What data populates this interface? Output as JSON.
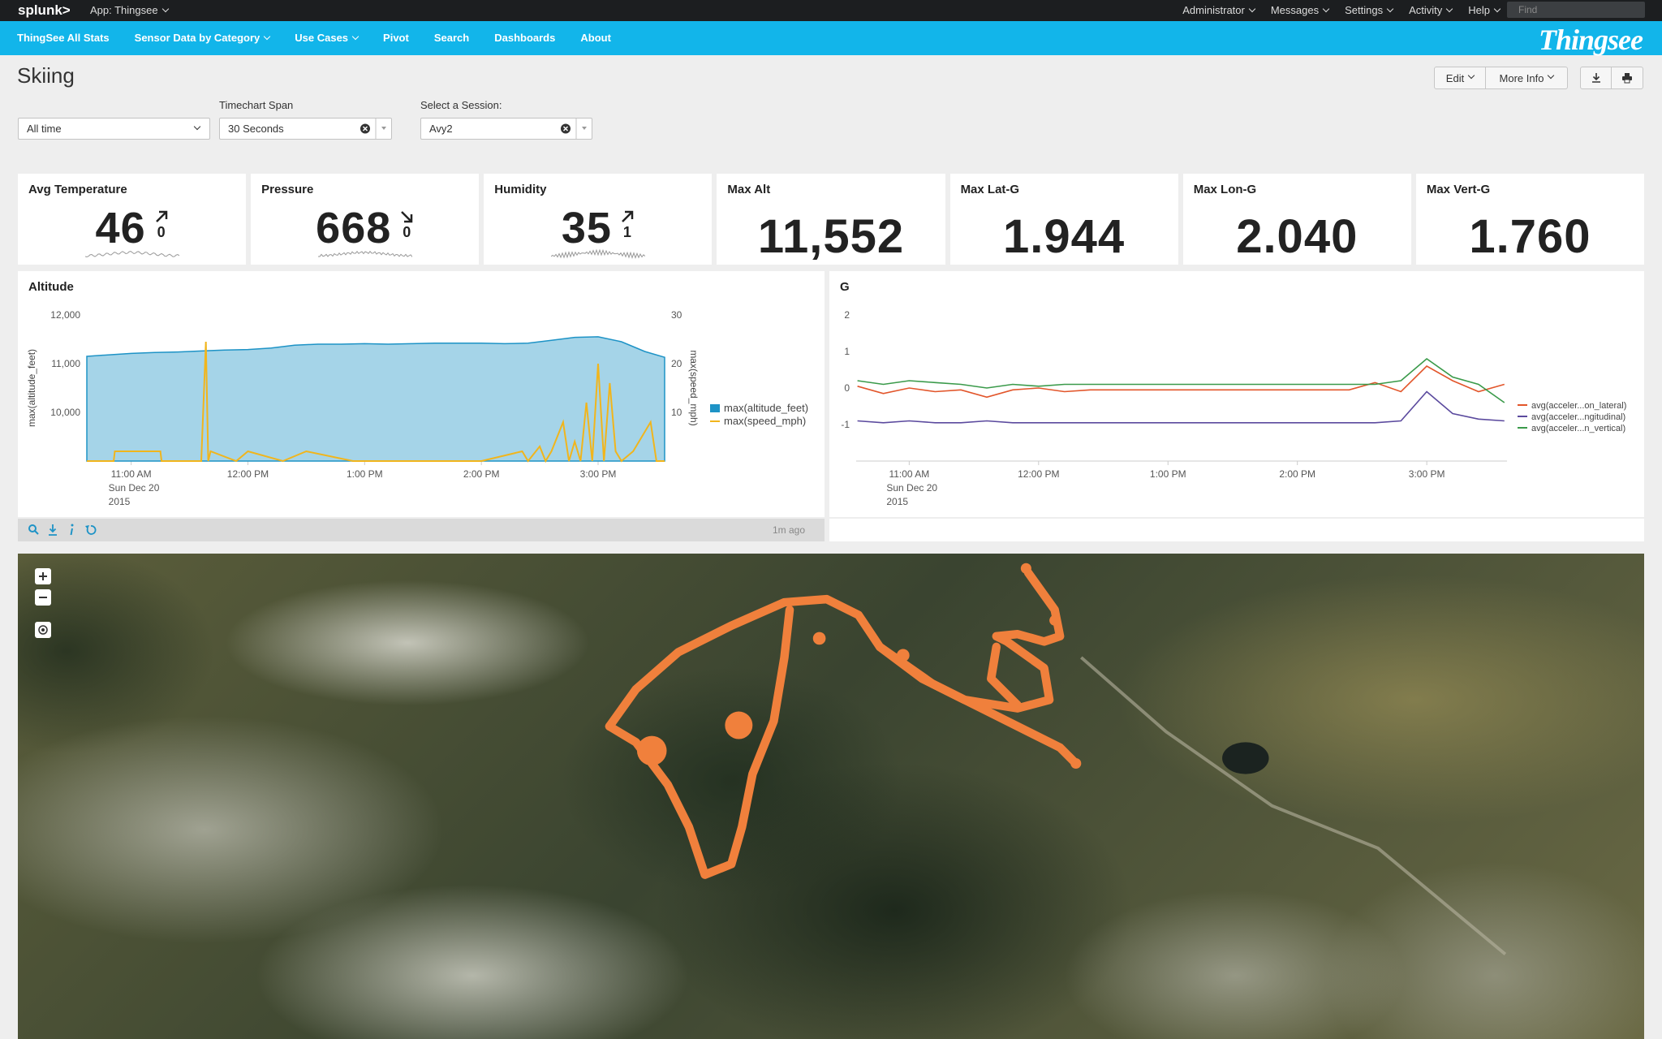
{
  "header": {
    "logo": "splunk>",
    "app": "App: Thingsee",
    "menu": [
      "Administrator",
      "Messages",
      "Settings",
      "Activity",
      "Help"
    ],
    "search": "Find"
  },
  "navigation": {
    "items": [
      {
        "label": "ThingSee All Stats"
      },
      {
        "label": "Sensor Data by Category",
        "dropdown": true
      },
      {
        "label": "Use Cases",
        "dropdown": true
      },
      {
        "label": "Pivot"
      },
      {
        "label": "Search"
      },
      {
        "label": "Dashboards"
      },
      {
        "label": "About"
      }
    ],
    "brand": "Thingsee"
  },
  "page": {
    "title": "Skiing",
    "buttons": [
      "Edit",
      "More Info"
    ]
  },
  "inputs": [
    {
      "value": "All time"
    },
    {
      "label": "Timechart Span",
      "value": "30 Seconds"
    },
    {
      "label": "Select a Session:",
      "value": "Avy2"
    }
  ],
  "single_values": [
    {
      "title": "Avg Temperature",
      "value": 46,
      "delta": 0,
      "trend": "up"
    },
    {
      "title": "Pressure",
      "value": 668,
      "delta": 0,
      "trend": "down"
    },
    {
      "title": "Humidity",
      "value": 35,
      "delta": 1,
      "trend": "up"
    },
    {
      "title": "Max Alt",
      "value": 11552,
      "value_label": "11,552"
    },
    {
      "title": "Max Lat-G",
      "value": 1.944
    },
    {
      "title": "Max Lon-G",
      "value": 2.04,
      "value_label": "2.040"
    },
    {
      "title": "Max Vert-G",
      "value": 1.76,
      "value_label": "1.760"
    }
  ],
  "chart_data": [
    {
      "type": "area",
      "title": "Altitude",
      "ylabel": "max(altitude_feet)",
      "y2label": "max(speed_mph)",
      "xlim": [
        10.62,
        15.57
      ],
      "xticks": [
        {
          "value": 11,
          "label": "11:00 AM"
        },
        {
          "value": 12,
          "label": "12:00 PM"
        },
        {
          "value": 13,
          "label": "1:00 PM"
        },
        {
          "value": 14,
          "label": "2:00 PM"
        },
        {
          "value": 15,
          "label": "3:00 PM"
        }
      ],
      "xtick_sublabels": [
        "Sun Dec 20",
        "2015"
      ],
      "ylim": [
        9000,
        12000
      ],
      "yticks": [
        {
          "value": 10000,
          "label": "10,000"
        },
        {
          "value": 11000,
          "label": "11,000"
        },
        {
          "value": 12000,
          "label": "12,000"
        }
      ],
      "y2lim": [
        0,
        30
      ],
      "y2ticks": [
        10,
        20,
        30
      ],
      "grid": false,
      "legend": "right",
      "series": [
        {
          "name": "max(altitude_feet)",
          "type": "area",
          "color": "#1e93c6",
          "x": [
            10.62,
            10.8,
            11.0,
            11.2,
            11.4,
            11.6,
            11.8,
            12.0,
            12.2,
            12.4,
            12.6,
            12.8,
            13.0,
            13.2,
            13.4,
            13.6,
            13.8,
            14.0,
            14.2,
            14.4,
            14.6,
            14.8,
            15.0,
            15.2,
            15.4,
            15.57
          ],
          "values": [
            11150,
            11180,
            11210,
            11230,
            11240,
            11260,
            11280,
            11290,
            11320,
            11380,
            11400,
            11400,
            11410,
            11400,
            11410,
            11420,
            11420,
            11420,
            11410,
            11420,
            11480,
            11540,
            11552,
            11450,
            11250,
            11130
          ]
        },
        {
          "name": "max(speed_mph)",
          "type": "line",
          "color": "#f1b51c",
          "axis": "y2",
          "x": [
            10.62,
            10.85,
            10.86,
            11.25,
            11.26,
            11.6,
            11.64,
            11.66,
            11.68,
            11.9,
            12.0,
            12.3,
            12.5,
            12.9,
            13.5,
            14.0,
            14.35,
            14.4,
            14.5,
            14.55,
            14.6,
            14.7,
            14.75,
            14.8,
            14.85,
            14.9,
            14.95,
            15.0,
            15.05,
            15.1,
            15.15,
            15.2,
            15.3,
            15.45,
            15.5,
            15.57
          ],
          "values": [
            0,
            0,
            2,
            2,
            0,
            0,
            24.5,
            0,
            2,
            0,
            2,
            0,
            2,
            0,
            0,
            0,
            2,
            0,
            3,
            0,
            2,
            8,
            0,
            4,
            0,
            12,
            0,
            20,
            0,
            16,
            2,
            0,
            2,
            8,
            0,
            0
          ]
        }
      ]
    },
    {
      "type": "line",
      "title": "G",
      "xlim": [
        10.59,
        15.62
      ],
      "xticks": [
        {
          "value": 11,
          "label": "11:00 AM"
        },
        {
          "value": 12,
          "label": "12:00 PM"
        },
        {
          "value": 13,
          "label": "1:00 PM"
        },
        {
          "value": 14,
          "label": "2:00 PM"
        },
        {
          "value": 15,
          "label": "3:00 PM"
        }
      ],
      "xtick_sublabels": [
        "Sun Dec 20",
        "2015"
      ],
      "ylim": [
        -2,
        2
      ],
      "yticks": [
        -1,
        0,
        1,
        2
      ],
      "grid": false,
      "legend": "right",
      "series": [
        {
          "name": "avg(acceler...on_lateral)",
          "color": "#e2552a",
          "x": [
            10.6,
            10.8,
            11.0,
            11.2,
            11.4,
            11.6,
            11.8,
            12.0,
            12.2,
            12.4,
            12.6,
            12.8,
            13.0,
            13.2,
            13.4,
            13.6,
            13.8,
            14.0,
            14.2,
            14.4,
            14.6,
            14.8,
            15.0,
            15.2,
            15.4,
            15.6
          ],
          "values": [
            0.05,
            -0.15,
            0.0,
            -0.1,
            -0.05,
            -0.25,
            -0.05,
            0.0,
            -0.1,
            -0.05,
            -0.05,
            -0.05,
            -0.05,
            -0.05,
            -0.05,
            -0.05,
            -0.05,
            -0.05,
            -0.05,
            -0.05,
            0.15,
            -0.1,
            0.6,
            0.2,
            -0.1,
            0.1
          ]
        },
        {
          "name": "avg(acceler...ngitudinal)",
          "color": "#5b4a9e",
          "x": [
            10.6,
            10.8,
            11.0,
            11.2,
            11.4,
            11.6,
            11.8,
            12.0,
            12.2,
            12.4,
            12.6,
            12.8,
            13.0,
            13.2,
            13.4,
            13.6,
            13.8,
            14.0,
            14.2,
            14.4,
            14.6,
            14.8,
            15.0,
            15.2,
            15.4,
            15.6
          ],
          "values": [
            -0.9,
            -0.95,
            -0.9,
            -0.95,
            -0.95,
            -0.9,
            -0.95,
            -0.95,
            -0.95,
            -0.95,
            -0.95,
            -0.95,
            -0.95,
            -0.95,
            -0.95,
            -0.95,
            -0.95,
            -0.95,
            -0.95,
            -0.95,
            -0.95,
            -0.9,
            -0.1,
            -0.7,
            -0.85,
            -0.9
          ]
        },
        {
          "name": "avg(acceler...n_vertical)",
          "color": "#3a9a4a",
          "x": [
            10.6,
            10.8,
            11.0,
            11.2,
            11.4,
            11.6,
            11.8,
            12.0,
            12.2,
            12.4,
            12.6,
            12.8,
            13.0,
            13.2,
            13.4,
            13.6,
            13.8,
            14.0,
            14.2,
            14.4,
            14.6,
            14.8,
            15.0,
            15.2,
            15.4,
            15.6
          ],
          "values": [
            0.2,
            0.1,
            0.2,
            0.15,
            0.1,
            0.0,
            0.1,
            0.05,
            0.1,
            0.1,
            0.1,
            0.1,
            0.1,
            0.1,
            0.1,
            0.1,
            0.1,
            0.1,
            0.1,
            0.1,
            0.1,
            0.2,
            0.8,
            0.3,
            0.1,
            -0.4
          ]
        }
      ]
    }
  ],
  "chart_footer": {
    "refreshed": "1m ago"
  }
}
